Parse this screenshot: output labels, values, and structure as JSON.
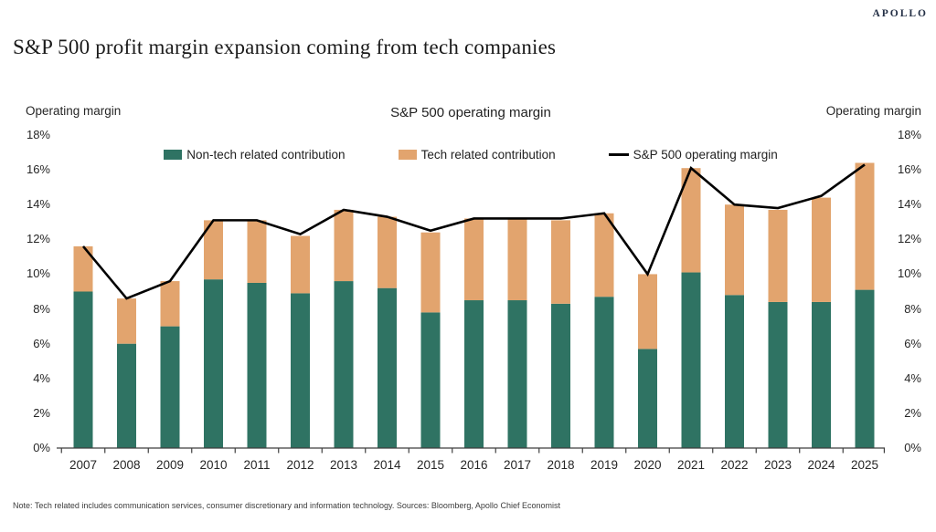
{
  "brand": "APOLLO",
  "page_title": "S&P 500 profit margin expansion coming from tech companies",
  "footnote": "Note: Tech related includes communication services, consumer discretionary and information technology. Sources: Bloomberg, Apollo Chief Economist",
  "colors": {
    "non_tech": "#2F7363",
    "tech": "#E2A46E",
    "line": "#000000",
    "brand": "#232F45",
    "axis": "#3F3F3F",
    "tick_text": "#262626"
  },
  "chart_data": {
    "type": "bar",
    "stacked": true,
    "title": "S&P 500 operating margin",
    "ylabel_left": "Operating margin",
    "ylabel_right": "Operating margin",
    "ylim": [
      0,
      18
    ],
    "ytick_step": 2,
    "ytick_labels": [
      "0%",
      "2%",
      "4%",
      "6%",
      "8%",
      "10%",
      "12%",
      "14%",
      "16%",
      "18%"
    ],
    "grid": false,
    "legend_position": "top",
    "categories": [
      "2007",
      "2008",
      "2009",
      "2010",
      "2011",
      "2012",
      "2013",
      "2014",
      "2015",
      "2016",
      "2017",
      "2018",
      "2019",
      "2020",
      "2021",
      "2022",
      "2023",
      "2024",
      "2025"
    ],
    "series": [
      {
        "name": "Non-tech related contribution",
        "type": "bar",
        "color": "#2F7363",
        "values": [
          9.0,
          6.0,
          7.0,
          9.7,
          9.5,
          8.9,
          9.6,
          9.2,
          7.8,
          8.5,
          8.5,
          8.3,
          8.7,
          5.7,
          10.1,
          8.8,
          8.4,
          8.4,
          9.1
        ]
      },
      {
        "name": "Tech related contribution",
        "type": "bar",
        "color": "#E2A46E",
        "values": [
          2.6,
          2.6,
          2.6,
          3.4,
          3.6,
          3.3,
          4.1,
          4.1,
          4.6,
          4.7,
          4.7,
          4.8,
          4.8,
          4.3,
          6.0,
          5.2,
          5.3,
          6.0,
          7.3
        ]
      },
      {
        "name": "S&P 500 operating margin",
        "type": "line",
        "color": "#000000",
        "values": [
          11.6,
          8.6,
          9.6,
          13.1,
          13.1,
          12.3,
          13.7,
          13.3,
          12.5,
          13.2,
          13.2,
          13.2,
          13.5,
          10.0,
          16.1,
          14.0,
          13.8,
          14.5,
          16.3
        ]
      }
    ]
  }
}
